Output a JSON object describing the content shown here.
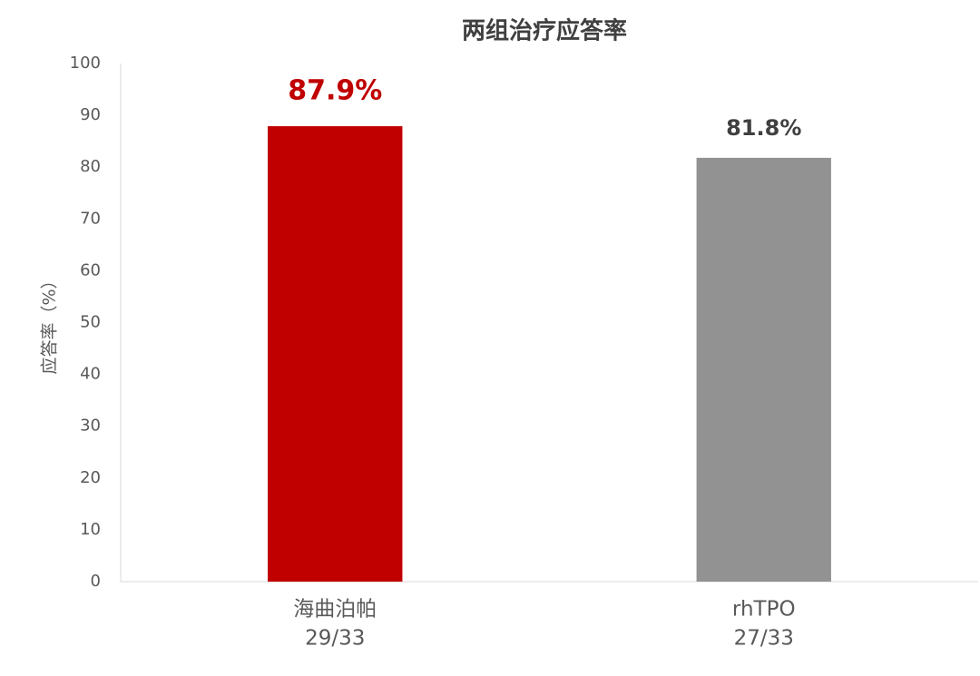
{
  "chart_data": {
    "type": "bar",
    "title": "两组治疗应答率",
    "y_label": "应答率（%）",
    "categories": [
      "海曲泊帕",
      "rhTPO"
    ],
    "category_sublabels": [
      "29/33",
      "27/33"
    ],
    "values": [
      87.9,
      81.8
    ],
    "value_labels": [
      "87.9%",
      "81.8%"
    ],
    "colors": [
      "#c00000",
      "#929292"
    ],
    "value_label_colors": [
      "#c00000",
      "#404040"
    ],
    "ylim": [
      0,
      100
    ],
    "yticks": [
      0,
      10,
      20,
      30,
      40,
      50,
      60,
      70,
      80,
      90,
      100
    ],
    "grid": false
  }
}
